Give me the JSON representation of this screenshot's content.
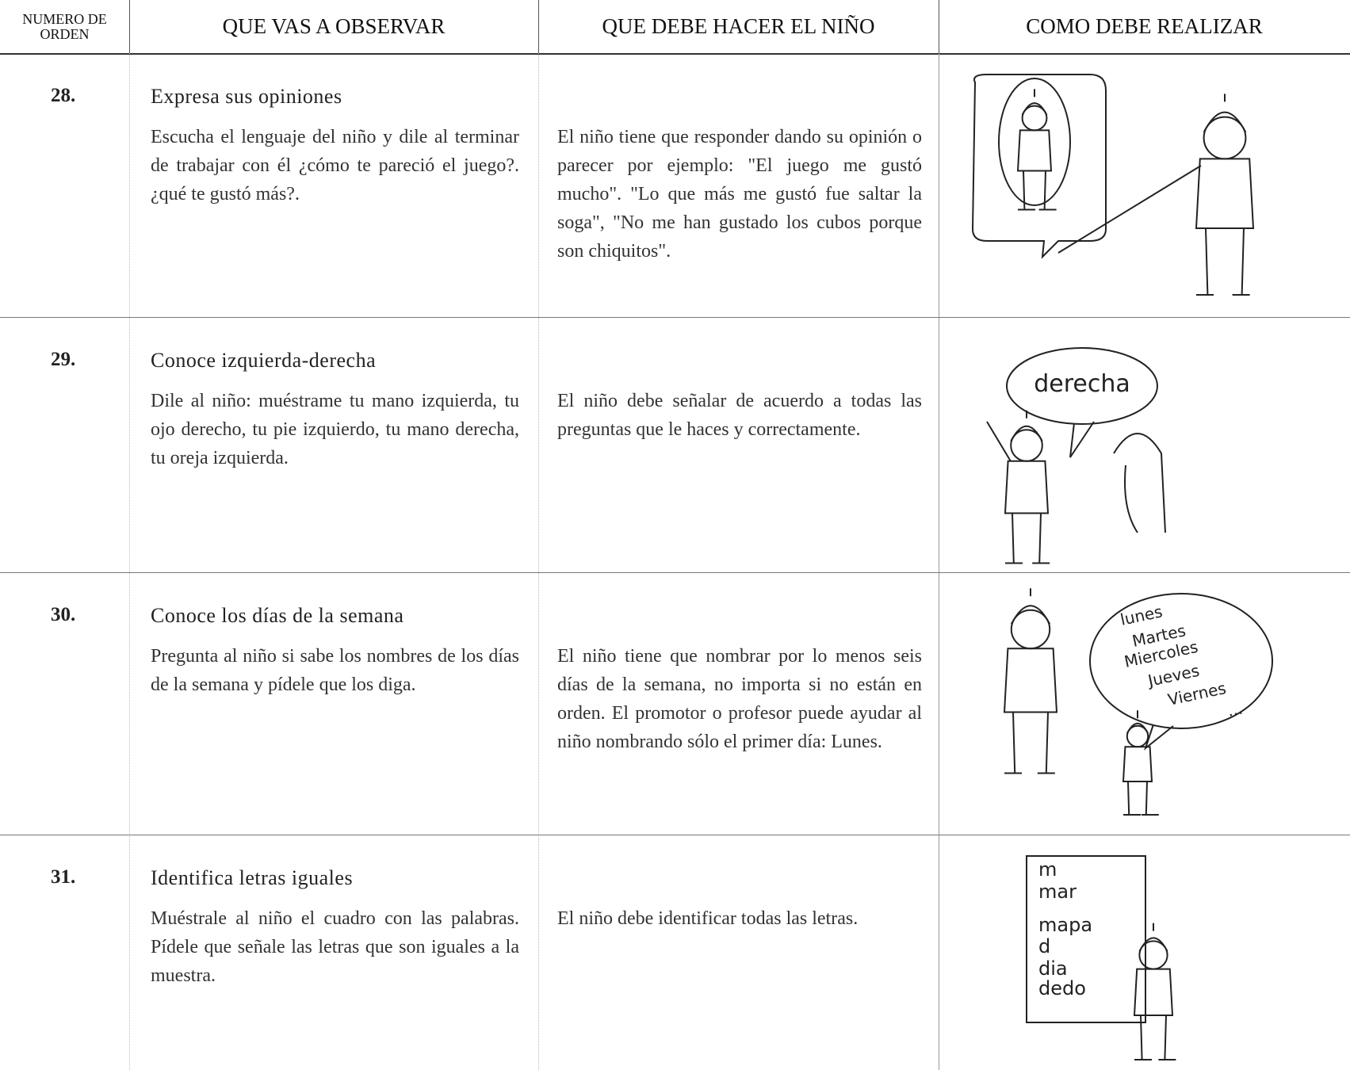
{
  "header": [
    "NUMERO DE ORDEN",
    "QUE VAS A OBSERVAR",
    "QUE DEBE HACER EL NIÑO",
    "COMO DEBE REALIZAR"
  ],
  "rows": [
    {
      "number": "28.",
      "title": "Expresa sus opiniones",
      "observe": "Escucha el lenguaje del niño y dile al terminar de trabajar con él ¿cómo te pareció el juego?. ¿qué te gustó más?.",
      "child": "El niño tiene que responder dando su opinión o parecer por ejemplo: \"El juego me gustó mucho\". \"Lo que más me gustó fue saltar la soga\", \"No me han gustado los cubos porque son chiquitos\".",
      "illustration_text": []
    },
    {
      "number": "29.",
      "title": "Conoce izquierda-derecha",
      "observe": "Dile al niño: muéstrame tu mano izquierda, tu ojo derecho, tu pie izquierdo, tu mano derecha, tu oreja izquierda.",
      "child": "El niño debe señalar de acuerdo a todas las preguntas que le haces y correctamente.",
      "illustration_text": [
        "derecha"
      ]
    },
    {
      "number": "30.",
      "title": "Conoce los días de la semana",
      "observe": "Pregunta al niño si sabe los nombres de los días de la semana y pídele que los diga.",
      "child": "El niño tiene que nombrar por lo menos seis días de la semana, no importa si no están en orden. El promotor o profesor puede ayudar al niño nombrando sólo el primer día: Lunes.",
      "illustration_text": [
        "lunes",
        "Martes",
        "Miercoles",
        "Jueves",
        "Viernes",
        "..."
      ]
    },
    {
      "number": "31.",
      "title": "Identifica letras iguales",
      "observe": "Muéstrale al niño el cuadro con las palabras. Pídele que señale las letras que son iguales a la muestra.",
      "child": "El niño debe identificar todas las letras.",
      "illustration_text": [
        "m",
        "mar",
        "mapa",
        "d",
        "dia",
        "dedo"
      ]
    }
  ]
}
